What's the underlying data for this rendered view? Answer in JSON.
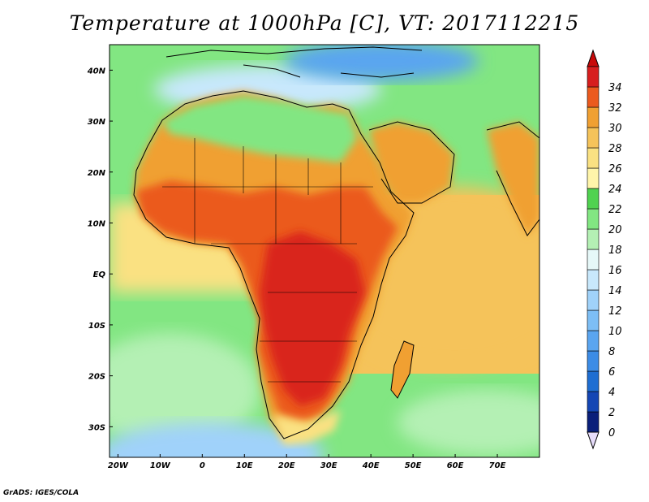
{
  "title": "Temperature at 1000hPa [C], VT: 2017112215",
  "credit": "GrADS: IGES/COLA",
  "map": {
    "lon_range": [
      -22,
      80
    ],
    "lat_range": [
      -36,
      45
    ],
    "lon_ticks": [
      {
        "lon": -20,
        "label": "20W"
      },
      {
        "lon": -10,
        "label": "10W"
      },
      {
        "lon": 0,
        "label": "0"
      },
      {
        "lon": 10,
        "label": "10E"
      },
      {
        "lon": 20,
        "label": "20E"
      },
      {
        "lon": 30,
        "label": "30E"
      },
      {
        "lon": 40,
        "label": "40E"
      },
      {
        "lon": 50,
        "label": "50E"
      },
      {
        "lon": 60,
        "label": "60E"
      },
      {
        "lon": 70,
        "label": "70E"
      }
    ],
    "lat_ticks": [
      {
        "lat": 40,
        "label": "40N"
      },
      {
        "lat": 30,
        "label": "30N"
      },
      {
        "lat": 20,
        "label": "20N"
      },
      {
        "lat": 10,
        "label": "10N"
      },
      {
        "lat": 0,
        "label": "EQ"
      },
      {
        "lat": -10,
        "label": "10S"
      },
      {
        "lat": -20,
        "label": "20S"
      },
      {
        "lat": -30,
        "label": "30S"
      }
    ]
  },
  "colorbar": {
    "units": "C",
    "levels": [
      0,
      2,
      4,
      6,
      8,
      10,
      12,
      14,
      16,
      18,
      20,
      22,
      24,
      26,
      28,
      30,
      32,
      34
    ],
    "colors": [
      "#0a1f7a",
      "#1446b4",
      "#1e6ed2",
      "#3c8ce6",
      "#5aa5f0",
      "#7dbef5",
      "#a0d2fa",
      "#c8e8fc",
      "#e6f8f8",
      "#b4f0b4",
      "#82e682",
      "#50d250",
      "#fff5aa",
      "#fae182",
      "#f5c35a",
      "#f0a032",
      "#eb5a1e",
      "#d71e1e"
    ],
    "below_color": "#e6dcfa",
    "above_color": "#c80a0a"
  },
  "colors": {
    "land_border": "#000000"
  }
}
